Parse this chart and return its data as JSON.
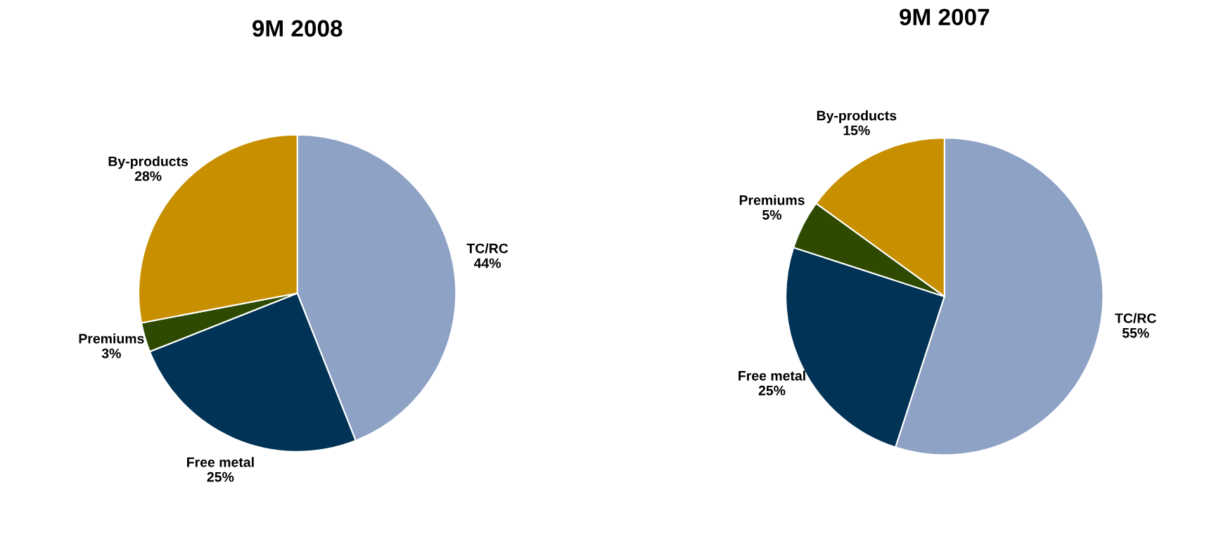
{
  "chart_data": [
    {
      "type": "pie",
      "title": "9M 2008",
      "categories": [
        "TC/RC",
        "Free metal",
        "Premiums",
        "By-products"
      ],
      "values": [
        44,
        25,
        3,
        28
      ],
      "value_labels": [
        "44%",
        "25%",
        "3%",
        "28%"
      ],
      "colors": [
        "#8ea2c6",
        "#003356",
        "#2e4a00",
        "#c89000"
      ]
    },
    {
      "type": "pie",
      "title": "9M 2007",
      "categories": [
        "TC/RC",
        "Free metal",
        "Premiums",
        "By-products"
      ],
      "values": [
        55,
        25,
        5,
        15
      ],
      "value_labels": [
        "55%",
        "25%",
        "5%",
        "15%"
      ],
      "colors": [
        "#8ea2c6",
        "#003356",
        "#2e4a00",
        "#c89000"
      ]
    }
  ]
}
